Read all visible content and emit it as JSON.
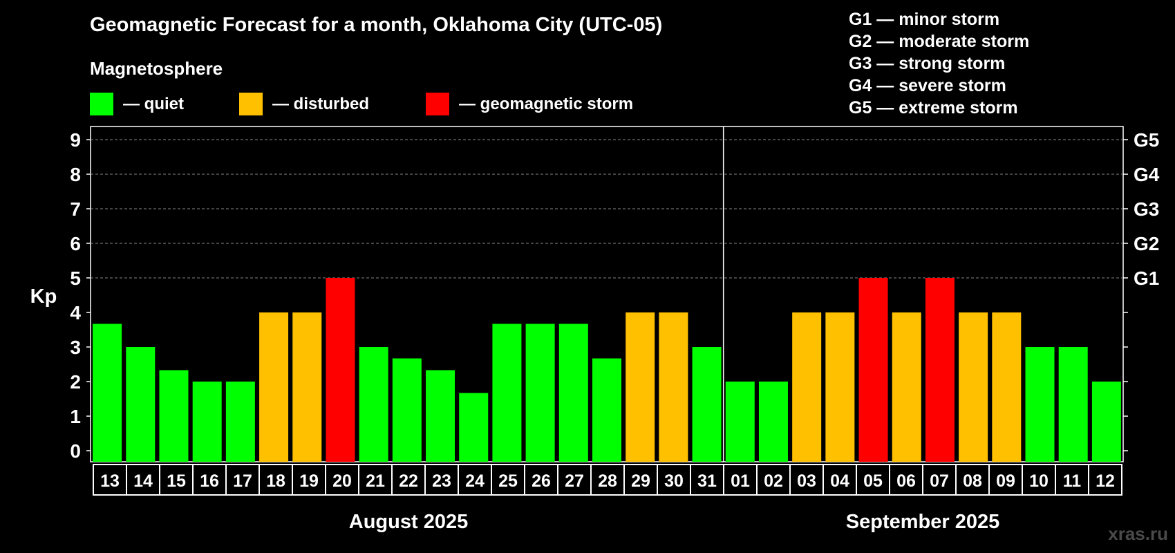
{
  "title": "Geomagnetic Forecast for a month, Oklahoma City (UTC-05)",
  "legend": {
    "heading": "Magnetosphere",
    "items": [
      {
        "label": "— quiet",
        "color": "#00ff00"
      },
      {
        "label": "— disturbed",
        "color": "#ffc000"
      },
      {
        "label": "— geomagnetic storm",
        "color": "#ff0000"
      }
    ]
  },
  "g_scale": [
    "G1 — minor storm",
    "G2 — moderate storm",
    "G3 — strong storm",
    "G4 — severe storm",
    "G5 — extreme storm"
  ],
  "watermark": "xras.ru",
  "chart_data": {
    "type": "bar",
    "ylabel": "Kp",
    "ylim": [
      0,
      9
    ],
    "yticks": [
      0,
      1,
      2,
      3,
      4,
      5,
      6,
      7,
      8,
      9
    ],
    "right_ticks": [
      {
        "value": 5,
        "label": "G1"
      },
      {
        "value": 6,
        "label": "G2"
      },
      {
        "value": 7,
        "label": "G3"
      },
      {
        "value": 8,
        "label": "G4"
      },
      {
        "value": 9,
        "label": "G5"
      }
    ],
    "categories": [
      "13",
      "14",
      "15",
      "16",
      "17",
      "18",
      "19",
      "20",
      "21",
      "22",
      "23",
      "24",
      "25",
      "26",
      "27",
      "28",
      "29",
      "30",
      "31",
      "01",
      "02",
      "03",
      "04",
      "05",
      "06",
      "07",
      "08",
      "09",
      "10",
      "11",
      "12"
    ],
    "values": [
      3.67,
      3,
      2.33,
      2,
      2,
      4,
      4,
      5,
      3,
      2.67,
      2.33,
      1.67,
      3.67,
      3.67,
      3.67,
      2.67,
      4,
      4,
      3,
      2,
      2,
      4,
      4,
      5,
      4,
      5,
      4,
      4,
      3,
      3,
      2
    ],
    "levels": [
      "quiet",
      "quiet",
      "quiet",
      "quiet",
      "quiet",
      "disturbed",
      "disturbed",
      "storm",
      "quiet",
      "quiet",
      "quiet",
      "quiet",
      "quiet",
      "quiet",
      "quiet",
      "quiet",
      "disturbed",
      "disturbed",
      "quiet",
      "quiet",
      "quiet",
      "disturbed",
      "disturbed",
      "storm",
      "disturbed",
      "storm",
      "disturbed",
      "disturbed",
      "quiet",
      "quiet",
      "quiet"
    ],
    "level_colors": {
      "quiet": "#00ff00",
      "disturbed": "#ffc000",
      "storm": "#ff0000"
    },
    "months": [
      {
        "label": "August 2025",
        "start": 0,
        "end": 18
      },
      {
        "label": "September 2025",
        "start": 19,
        "end": 30
      }
    ]
  }
}
